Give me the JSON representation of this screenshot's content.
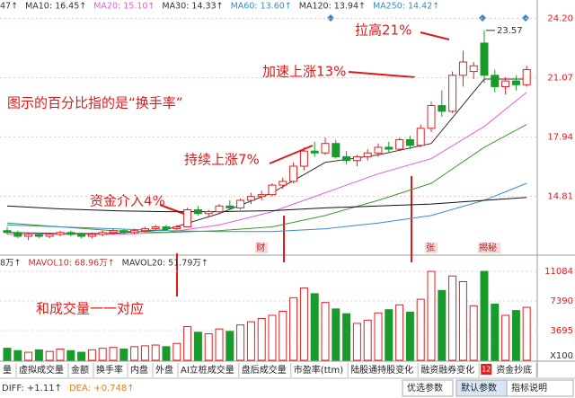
{
  "chart_data": [
    {
      "type": "candlestick",
      "legend": [
        "47↑",
        "MA10: 16.45↑",
        "MA20: 15.10↑",
        "MA30: 14.33↑",
        "MA60: 13.60↑",
        "MA120: 13.94↑",
        "MA250: 14.42↑"
      ],
      "open": [
        13.0,
        12.9,
        12.7,
        12.8,
        12.7,
        12.8,
        12.9,
        12.8,
        12.7,
        12.8,
        12.9,
        13.0,
        12.9,
        13.0,
        13.1,
        13.2,
        13.1,
        13.2,
        14.1,
        13.9,
        14.0,
        14.3,
        14.2,
        14.6,
        14.8,
        14.9,
        15.4,
        15.6,
        16.4,
        17.2,
        17.1,
        17.6,
        16.9,
        16.7,
        16.9,
        17.1,
        17.4,
        17.3,
        17.8,
        17.5,
        18.4,
        19.6,
        19.3,
        21.2,
        21.4,
        22.9,
        21.2,
        20.6,
        20.9,
        20.7
      ],
      "high": [
        13.2,
        13.0,
        12.9,
        12.9,
        12.9,
        13.0,
        13.0,
        12.9,
        12.9,
        13.0,
        13.1,
        13.1,
        13.1,
        13.2,
        13.3,
        13.3,
        13.3,
        14.2,
        14.3,
        14.1,
        14.4,
        14.6,
        14.7,
        15.0,
        15.1,
        15.5,
        15.8,
        16.6,
        17.4,
        17.7,
        17.9,
        17.8,
        17.2,
        17.0,
        17.3,
        17.6,
        17.7,
        17.9,
        18.0,
        18.6,
        19.8,
        20.4,
        21.4,
        22.5,
        21.9,
        23.57,
        21.5,
        21.1,
        21.2,
        21.7
      ],
      "low": [
        12.8,
        12.6,
        12.5,
        12.6,
        12.6,
        12.7,
        12.7,
        12.6,
        12.6,
        12.7,
        12.8,
        12.8,
        12.8,
        12.9,
        13.0,
        13.0,
        13.0,
        13.2,
        13.8,
        13.7,
        13.9,
        14.1,
        14.1,
        14.4,
        14.6,
        14.8,
        15.2,
        15.5,
        16.2,
        16.9,
        17.0,
        16.8,
        16.5,
        16.4,
        16.7,
        16.9,
        17.1,
        17.2,
        17.3,
        17.4,
        18.2,
        19.0,
        19.2,
        20.6,
        21.0,
        20.8,
        20.3,
        20.2,
        20.4,
        20.6
      ],
      "close": [
        12.9,
        12.7,
        12.8,
        12.7,
        12.8,
        12.9,
        12.8,
        12.7,
        12.8,
        12.9,
        13.0,
        12.9,
        13.0,
        13.1,
        13.2,
        13.1,
        13.2,
        14.1,
        13.9,
        14.0,
        14.3,
        14.2,
        14.6,
        14.8,
        14.9,
        15.4,
        15.6,
        16.4,
        17.2,
        17.1,
        17.6,
        16.9,
        16.7,
        16.9,
        17.1,
        17.4,
        17.3,
        17.8,
        17.5,
        18.4,
        19.6,
        19.3,
        21.2,
        21.9,
        21.7,
        21.2,
        20.6,
        20.9,
        20.7,
        21.5
      ],
      "up_color": "#e02020",
      "down_color": "#1a9a2a",
      "lines": [
        {
          "color": "#333333",
          "x": [
            0,
            5,
            10,
            15,
            20,
            25,
            30,
            35,
            40,
            45,
            49
          ],
          "values": [
            12.9,
            12.85,
            12.85,
            13.05,
            13.9,
            15.0,
            16.6,
            17.0,
            17.6,
            21.0,
            21.0
          ]
        },
        {
          "color": "#e85ad8",
          "x": [
            0,
            5,
            10,
            15,
            20,
            25,
            30,
            35,
            40,
            45,
            49
          ],
          "values": [
            12.8,
            12.8,
            12.8,
            12.9,
            13.3,
            14.0,
            15.0,
            16.0,
            16.8,
            18.5,
            20.3
          ]
        },
        {
          "color": "#3a9a2a",
          "x": [
            0,
            5,
            10,
            15,
            20,
            25,
            30,
            35,
            40,
            45,
            49
          ],
          "values": [
            13.4,
            13.2,
            13.0,
            12.9,
            13.0,
            13.2,
            13.8,
            14.6,
            15.5,
            17.4,
            18.6
          ]
        },
        {
          "color": "#2f8fcf",
          "x": [
            0,
            5,
            10,
            15,
            20,
            25,
            30,
            35,
            40,
            45,
            49
          ],
          "values": [
            13.3,
            13.2,
            13.1,
            13.0,
            12.95,
            12.95,
            13.1,
            13.4,
            13.8,
            14.6,
            15.5
          ]
        },
        {
          "color": "#111111",
          "x": [
            0,
            5,
            10,
            15,
            20,
            25,
            30,
            35,
            40,
            45,
            49
          ],
          "values": [
            14.3,
            14.15,
            14.05,
            14.0,
            14.0,
            14.05,
            14.2,
            14.3,
            14.4,
            14.6,
            14.75
          ]
        }
      ],
      "ylim": [
        11.8,
        24.7
      ],
      "yticks": [
        {
          "value": 24.2,
          "label": "24.20"
        },
        21.07,
        17.94,
        14.81
      ],
      "event_markers": [
        {
          "index": 24,
          "label": "财"
        },
        {
          "index": 40,
          "label": "张"
        },
        {
          "index": 45,
          "label": "揭秘"
        }
      ],
      "high_label": "23.57"
    },
    {
      "type": "bar",
      "legend": [
        "8万↑",
        "MAVOL10: 68.96万↑",
        "MAVOL20: 51.79万↑"
      ],
      "values": [
        1500,
        1200,
        1000,
        1300,
        1100,
        1400,
        1200,
        1000,
        1300,
        1500,
        1600,
        1400,
        1700,
        1800,
        1900,
        1700,
        2100,
        4200,
        3500,
        3300,
        3900,
        3600,
        4400,
        4800,
        5200,
        5600,
        6100,
        7800,
        9000,
        8300,
        7200,
        6400,
        5800,
        4600,
        5000,
        5900,
        6300,
        6900,
        6000,
        7600,
        11084,
        8700,
        10500,
        9800,
        6800,
        11084,
        7000,
        5600,
        6200,
        6600
      ],
      "ylim": [
        0,
        11084
      ],
      "yticks": [
        11084,
        7390,
        3695
      ],
      "unit": "X100"
    }
  ],
  "annotations": [
    "拉高21%",
    "加速上涨13%",
    "图示的百分比指的是“换手率”",
    "持续上涨7%",
    "资金介入4%",
    "和成交量一一对应"
  ],
  "tabs": [
    "量",
    "虚拟成交量",
    "金额",
    "换手率",
    "内盘",
    "外盘",
    "AI立桩成交量",
    "盘后成交量",
    "市盈率(ttm)",
    "陆股通持股变化",
    "融资融券变化",
    "资金抄底"
  ],
  "tab_badge": "12",
  "indicator": [
    "DIFF: +1.11↑",
    "DEA: +0.748↑"
  ],
  "buttons": [
    "优选参数",
    "默认参数",
    "指标说明"
  ]
}
